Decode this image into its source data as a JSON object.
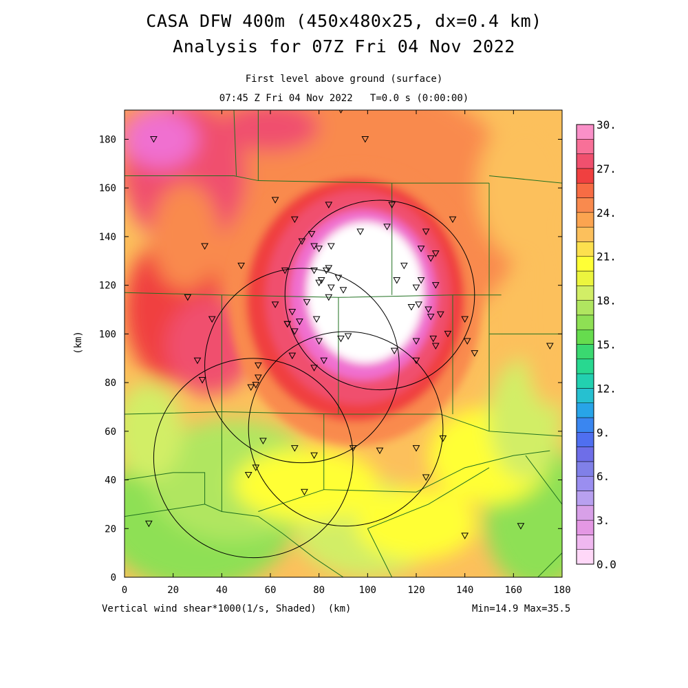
{
  "header": {
    "title_line1": "CASA DFW 400m (450x480x25, dx=0.4 km)",
    "title_line2": "Analysis for 07Z Fri 04 Nov 2022",
    "subtitle_line1": "First level above ground (surface)",
    "subtitle_line2": "07:45 Z Fri 04 Nov 2022   T=0.0 s (0:00:00)"
  },
  "footer": {
    "field_label": "Vertical wind shear*1000(1/s, Shaded)  (km)",
    "minmax": "Min=14.9 Max=35.5"
  },
  "chart_data": {
    "type": "heatmap",
    "xlabel": "(km)",
    "ylabel": "(km)",
    "xlim": [
      0,
      180
    ],
    "ylim": [
      0,
      192
    ],
    "x_ticks": [
      "0",
      "20",
      "40",
      "60",
      "80",
      "100",
      "120",
      "140",
      "160",
      "180"
    ],
    "y_ticks": [
      "0",
      "20",
      "40",
      "60",
      "80",
      "100",
      "120",
      "140",
      "160",
      "180"
    ],
    "x_tick_values": [
      0,
      20,
      40,
      60,
      80,
      100,
      120,
      140,
      160,
      180
    ],
    "y_tick_values": [
      0,
      20,
      40,
      60,
      80,
      100,
      120,
      140,
      160,
      180
    ],
    "data_min": 14.9,
    "data_max": 35.5,
    "colorbar": {
      "labels": [
        "30.",
        "27.",
        "24.",
        "21.",
        "18.",
        "15.",
        "12.",
        "9.",
        "6.",
        "3.",
        "0.0"
      ],
      "label_values": [
        30,
        27,
        24,
        21,
        18,
        15,
        12,
        9,
        6,
        3,
        0
      ],
      "colors": [
        "#ffd8f8",
        "#f0b8f0",
        "#e498e4",
        "#d8a0e8",
        "#b8a0f0",
        "#9a8ef0",
        "#8080e8",
        "#6e6ee8",
        "#4f6ff0",
        "#3a86f0",
        "#28a4e8",
        "#26c0d0",
        "#22d0b0",
        "#28d890",
        "#3ad870",
        "#66dc4e",
        "#8ee054",
        "#b0e660",
        "#d2ee66",
        "#ecf53e",
        "#ffff36",
        "#fde04e",
        "#fcc05c",
        "#fba450",
        "#f98a4e",
        "#f76c44",
        "#f04040",
        "#f0506e",
        "#f87098",
        "#fa90c8"
      ]
    },
    "colors": {
      "high_core": "#ffffff",
      "very_high": "#f070d0",
      "high": "#f0506e",
      "upper": "#f04040",
      "mid_high": "#f98a4e",
      "mid": "#fcc05c",
      "mid_low": "#ffff36",
      "low": "#d2ee66",
      "lower": "#b0e660",
      "lowest": "#8ee054",
      "county_lines": "#207020"
    },
    "radar_rings": [
      {
        "center": [
          105,
          116
        ],
        "radius": 39
      },
      {
        "center": [
          73,
          87
        ],
        "radius": 40
      },
      {
        "center": [
          91,
          61
        ],
        "radius": 40
      },
      {
        "center": [
          53,
          49
        ],
        "radius": 41
      }
    ],
    "stations": [
      [
        89,
        192
      ],
      [
        12,
        180
      ],
      [
        99,
        180
      ],
      [
        62,
        155
      ],
      [
        84,
        153
      ],
      [
        110,
        153
      ],
      [
        135,
        147
      ],
      [
        70,
        147
      ],
      [
        108,
        144
      ],
      [
        97,
        142
      ],
      [
        77,
        141
      ],
      [
        124,
        142
      ],
      [
        73,
        138
      ],
      [
        85,
        136
      ],
      [
        78,
        136
      ],
      [
        80,
        135
      ],
      [
        122,
        135
      ],
      [
        128,
        133
      ],
      [
        126,
        131
      ],
      [
        33,
        136
      ],
      [
        115,
        128
      ],
      [
        48,
        128
      ],
      [
        66,
        126
      ],
      [
        78,
        126
      ],
      [
        84,
        127
      ],
      [
        83,
        126
      ],
      [
        88,
        123
      ],
      [
        81,
        122
      ],
      [
        80,
        121
      ],
      [
        112,
        122
      ],
      [
        122,
        122
      ],
      [
        120,
        119
      ],
      [
        85,
        119
      ],
      [
        90,
        118
      ],
      [
        128,
        120
      ],
      [
        26,
        115
      ],
      [
        75,
        113
      ],
      [
        62,
        112
      ],
      [
        84,
        115
      ],
      [
        121,
        112
      ],
      [
        118,
        111
      ],
      [
        125,
        110
      ],
      [
        69,
        109
      ],
      [
        126,
        107
      ],
      [
        130,
        108
      ],
      [
        36,
        106
      ],
      [
        79,
        106
      ],
      [
        72,
        105
      ],
      [
        67,
        104
      ],
      [
        67,
        104
      ],
      [
        70,
        101
      ],
      [
        140,
        106
      ],
      [
        133,
        100
      ],
      [
        127,
        98
      ],
      [
        89,
        98
      ],
      [
        92,
        99
      ],
      [
        80,
        97
      ],
      [
        120,
        97
      ],
      [
        128,
        95
      ],
      [
        141,
        97
      ],
      [
        175,
        95
      ],
      [
        111,
        93
      ],
      [
        144,
        92
      ],
      [
        69,
        91
      ],
      [
        30,
        89
      ],
      [
        82,
        89
      ],
      [
        120,
        89
      ],
      [
        55,
        87
      ],
      [
        78,
        86
      ],
      [
        55,
        82
      ],
      [
        32,
        81
      ],
      [
        54,
        79
      ],
      [
        52,
        78
      ],
      [
        57,
        56
      ],
      [
        70,
        53
      ],
      [
        94,
        53
      ],
      [
        120,
        53
      ],
      [
        131,
        57
      ],
      [
        78,
        50
      ],
      [
        105,
        52
      ],
      [
        54,
        45
      ],
      [
        51,
        42
      ],
      [
        124,
        41
      ],
      [
        74,
        35
      ],
      [
        10,
        22
      ],
      [
        163,
        21
      ],
      [
        140,
        17
      ]
    ]
  }
}
